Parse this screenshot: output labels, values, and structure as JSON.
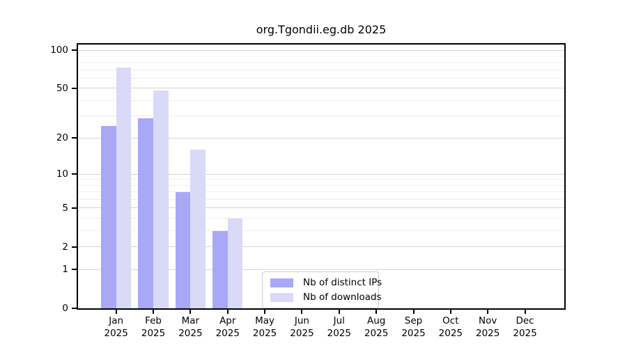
{
  "title": "org.Tgondii.eg.db 2025",
  "colors": {
    "axis": "#000000",
    "grid_major": "#d4d4d4",
    "grid_minor": "#eeeeee",
    "background": "#ffffff",
    "legend_border": "#cccccc"
  },
  "chart_data": {
    "type": "bar",
    "title": "org.Tgondii.eg.db 2025",
    "y_scale": "log1p",
    "ylim": [
      0,
      100
    ],
    "grid": "horizontal-major-and-minor",
    "legend_position": "inside-bottom-center",
    "categories": [
      "Jan",
      "Feb",
      "Mar",
      "Apr",
      "May",
      "Jun",
      "Jul",
      "Aug",
      "Sep",
      "Oct",
      "Nov",
      "Dec"
    ],
    "category_year": "2025",
    "y_ticks": [
      0,
      1,
      2,
      5,
      10,
      20,
      50,
      100
    ],
    "y_minor_ticks": [
      3,
      4,
      6,
      7,
      8,
      9,
      30,
      40,
      60,
      70,
      80,
      90
    ],
    "series": [
      {
        "name": "Nb of distinct IPs",
        "color": "#a8a8f7",
        "values": [
          25,
          29,
          7,
          3,
          null,
          null,
          null,
          null,
          null,
          null,
          null,
          null
        ]
      },
      {
        "name": "Nb of downloads",
        "color": "#d9d9f8",
        "values": [
          73,
          48,
          16,
          4,
          null,
          null,
          null,
          null,
          null,
          null,
          null,
          null
        ]
      }
    ]
  }
}
